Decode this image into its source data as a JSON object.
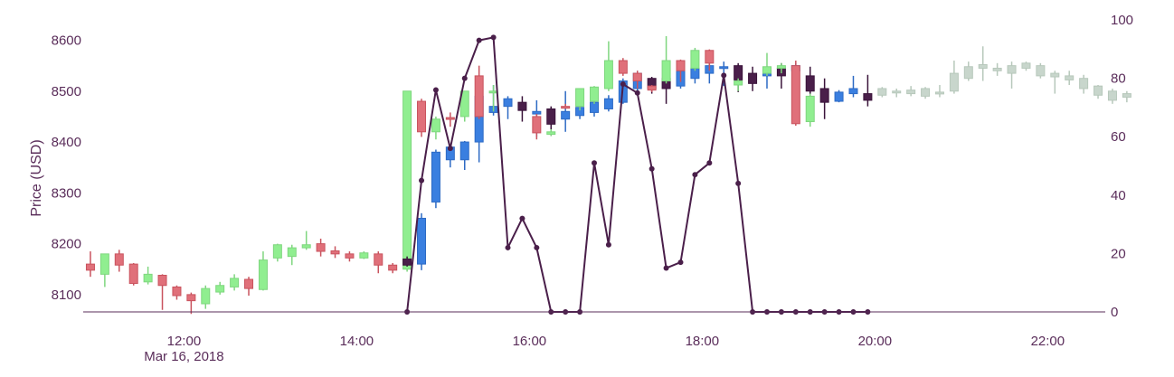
{
  "chart_data": {
    "type": "candlestick",
    "title": "",
    "xlabel": "",
    "ylabel": "Price (USD)",
    "y2label": "",
    "ylim": [
      8066,
      8640
    ],
    "y2lim": [
      0,
      100
    ],
    "xlim": [
      "10:50",
      "22:40"
    ],
    "x_date_label": "Mar 16, 2018",
    "x_ticks": [
      "12:00",
      "14:00",
      "16:00",
      "18:00",
      "20:00",
      "22:00"
    ],
    "y_ticks": [
      "8100",
      "8200",
      "8300",
      "8400",
      "8500",
      "8600"
    ],
    "y2_ticks": [
      "0",
      "20",
      "40",
      "60",
      "80",
      "100"
    ],
    "grid": false,
    "legend": "none",
    "colors": {
      "up": "#90ee90",
      "down": "#e0707a",
      "blue": "#3a7fe0",
      "dark": "#4a1f4a",
      "faded": "#c8d6cc",
      "line": "#4a1f4a",
      "axis_text": "#5a2d5a"
    },
    "candles": [
      {
        "t": "10:55",
        "o": 8160,
        "h": 8185,
        "l": 8135,
        "c": 8148,
        "k": "down"
      },
      {
        "t": "11:05",
        "o": 8140,
        "h": 8180,
        "l": 8115,
        "c": 8180,
        "k": "up"
      },
      {
        "t": "11:15",
        "o": 8180,
        "h": 8188,
        "l": 8145,
        "c": 8158,
        "k": "down"
      },
      {
        "t": "11:25",
        "o": 8160,
        "h": 8162,
        "l": 8118,
        "c": 8122,
        "k": "down"
      },
      {
        "t": "11:35",
        "o": 8125,
        "h": 8155,
        "l": 8120,
        "c": 8140,
        "k": "up"
      },
      {
        "t": "11:45",
        "o": 8138,
        "h": 8140,
        "l": 8070,
        "c": 8118,
        "k": "down"
      },
      {
        "t": "11:55",
        "o": 8115,
        "h": 8118,
        "l": 8090,
        "c": 8098,
        "k": "down"
      },
      {
        "t": "12:05",
        "o": 8100,
        "h": 8104,
        "l": 8062,
        "c": 8088,
        "k": "down"
      },
      {
        "t": "12:15",
        "o": 8082,
        "h": 8118,
        "l": 8072,
        "c": 8112,
        "k": "up"
      },
      {
        "t": "12:25",
        "o": 8105,
        "h": 8125,
        "l": 8100,
        "c": 8118,
        "k": "up"
      },
      {
        "t": "12:35",
        "o": 8115,
        "h": 8140,
        "l": 8108,
        "c": 8132,
        "k": "up"
      },
      {
        "t": "12:45",
        "o": 8130,
        "h": 8135,
        "l": 8098,
        "c": 8112,
        "k": "down"
      },
      {
        "t": "12:55",
        "o": 8110,
        "h": 8185,
        "l": 8108,
        "c": 8168,
        "k": "up"
      },
      {
        "t": "13:05",
        "o": 8172,
        "h": 8200,
        "l": 8165,
        "c": 8198,
        "k": "up"
      },
      {
        "t": "13:15",
        "o": 8175,
        "h": 8198,
        "l": 8158,
        "c": 8192,
        "k": "up"
      },
      {
        "t": "13:25",
        "o": 8192,
        "h": 8225,
        "l": 8188,
        "c": 8198,
        "k": "up"
      },
      {
        "t": "13:35",
        "o": 8200,
        "h": 8210,
        "l": 8175,
        "c": 8185,
        "k": "down"
      },
      {
        "t": "13:45",
        "o": 8186,
        "h": 8195,
        "l": 8172,
        "c": 8180,
        "k": "down"
      },
      {
        "t": "13:55",
        "o": 8180,
        "h": 8185,
        "l": 8165,
        "c": 8172,
        "k": "down"
      },
      {
        "t": "14:05",
        "o": 8172,
        "h": 8185,
        "l": 8170,
        "c": 8182,
        "k": "up"
      },
      {
        "t": "14:15",
        "o": 8180,
        "h": 8185,
        "l": 8142,
        "c": 8158,
        "k": "down"
      },
      {
        "t": "14:25",
        "o": 8158,
        "h": 8162,
        "l": 8142,
        "c": 8148,
        "k": "down"
      },
      {
        "t": "14:35",
        "o": 8150,
        "h": 8500,
        "l": 8145,
        "c": 8500,
        "k": "up"
      },
      {
        "t": "14:35",
        "o": 8170,
        "h": 8175,
        "l": 8155,
        "c": 8158,
        "k": "dark"
      },
      {
        "t": "14:45",
        "o": 8250,
        "h": 8260,
        "l": 8148,
        "c": 8160,
        "k": "blue"
      },
      {
        "t": "14:45",
        "o": 8480,
        "h": 8485,
        "l": 8410,
        "c": 8420,
        "k": "down"
      },
      {
        "t": "14:55",
        "o": 8282,
        "h": 8385,
        "l": 8270,
        "c": 8380,
        "k": "blue"
      },
      {
        "t": "14:55",
        "o": 8420,
        "h": 8450,
        "l": 8405,
        "c": 8445,
        "k": "up"
      },
      {
        "t": "15:05",
        "o": 8365,
        "h": 8395,
        "l": 8350,
        "c": 8390,
        "k": "blue"
      },
      {
        "t": "15:05",
        "o": 8445,
        "h": 8458,
        "l": 8430,
        "c": 8448,
        "k": "down"
      },
      {
        "t": "15:15",
        "o": 8365,
        "h": 8402,
        "l": 8345,
        "c": 8400,
        "k": "blue"
      },
      {
        "t": "15:15",
        "o": 8450,
        "h": 8500,
        "l": 8440,
        "c": 8500,
        "k": "up"
      },
      {
        "t": "15:25",
        "o": 8400,
        "h": 8500,
        "l": 8360,
        "c": 8490,
        "k": "blue"
      },
      {
        "t": "15:25",
        "o": 8530,
        "h": 8550,
        "l": 8445,
        "c": 8450,
        "k": "down"
      },
      {
        "t": "15:35",
        "o": 8458,
        "h": 8512,
        "l": 8452,
        "c": 8470,
        "k": "blue"
      },
      {
        "t": "15:35",
        "o": 8500,
        "h": 8512,
        "l": 8460,
        "c": 8500,
        "k": "up"
      },
      {
        "t": "15:45",
        "o": 8470,
        "h": 8490,
        "l": 8445,
        "c": 8485,
        "k": "blue"
      },
      {
        "t": "15:55",
        "o": 8462,
        "h": 8490,
        "l": 8440,
        "c": 8478,
        "k": "dark"
      },
      {
        "t": "16:05",
        "o": 8455,
        "h": 8482,
        "l": 8410,
        "c": 8460,
        "k": "blue"
      },
      {
        "t": "16:05",
        "o": 8450,
        "h": 8455,
        "l": 8405,
        "c": 8418,
        "k": "down"
      },
      {
        "t": "16:15",
        "o": 8435,
        "h": 8470,
        "l": 8412,
        "c": 8465,
        "k": "dark"
      },
      {
        "t": "16:15",
        "o": 8420,
        "h": 8425,
        "l": 8412,
        "c": 8415,
        "k": "up"
      },
      {
        "t": "16:25",
        "o": 8445,
        "h": 8500,
        "l": 8420,
        "c": 8460,
        "k": "blue"
      },
      {
        "t": "16:25",
        "o": 8470,
        "h": 8475,
        "l": 8465,
        "c": 8470,
        "k": "down"
      },
      {
        "t": "16:35",
        "o": 8452,
        "h": 8505,
        "l": 8445,
        "c": 8468,
        "k": "blue"
      },
      {
        "t": "16:35",
        "o": 8470,
        "h": 8505,
        "l": 8462,
        "c": 8505,
        "k": "up"
      },
      {
        "t": "16:45",
        "o": 8458,
        "h": 8480,
        "l": 8450,
        "c": 8478,
        "k": "blue"
      },
      {
        "t": "16:45",
        "o": 8480,
        "h": 8510,
        "l": 8475,
        "c": 8508,
        "k": "up"
      },
      {
        "t": "16:55",
        "o": 8465,
        "h": 8492,
        "l": 8460,
        "c": 8485,
        "k": "blue"
      },
      {
        "t": "16:55",
        "o": 8505,
        "h": 8598,
        "l": 8500,
        "c": 8560,
        "k": "up"
      },
      {
        "t": "17:05",
        "o": 8478,
        "h": 8525,
        "l": 8475,
        "c": 8520,
        "k": "blue"
      },
      {
        "t": "17:05",
        "o": 8560,
        "h": 8565,
        "l": 8530,
        "c": 8535,
        "k": "down"
      },
      {
        "t": "17:15",
        "o": 8505,
        "h": 8540,
        "l": 8495,
        "c": 8535,
        "k": "blue"
      },
      {
        "t": "17:15",
        "o": 8535,
        "h": 8540,
        "l": 8505,
        "c": 8520,
        "k": "down"
      },
      {
        "t": "17:25",
        "o": 8525,
        "h": 8528,
        "l": 8495,
        "c": 8505,
        "k": "dark"
      },
      {
        "t": "17:25",
        "o": 8510,
        "h": 8512,
        "l": 8498,
        "c": 8502,
        "k": "down"
      },
      {
        "t": "17:35",
        "o": 8525,
        "h": 8528,
        "l": 8475,
        "c": 8505,
        "k": "dark"
      },
      {
        "t": "17:35",
        "o": 8520,
        "h": 8608,
        "l": 8515,
        "c": 8560,
        "k": "up"
      },
      {
        "t": "17:45",
        "o": 8510,
        "h": 8555,
        "l": 8505,
        "c": 8540,
        "k": "blue"
      },
      {
        "t": "17:45",
        "o": 8560,
        "h": 8562,
        "l": 8518,
        "c": 8540,
        "k": "down"
      },
      {
        "t": "17:55",
        "o": 8525,
        "h": 8582,
        "l": 8515,
        "c": 8545,
        "k": "blue"
      },
      {
        "t": "17:55",
        "o": 8545,
        "h": 8585,
        "l": 8540,
        "c": 8580,
        "k": "up"
      },
      {
        "t": "18:05",
        "o": 8535,
        "h": 8555,
        "l": 8515,
        "c": 8550,
        "k": "blue"
      },
      {
        "t": "18:05",
        "o": 8580,
        "h": 8582,
        "l": 8540,
        "c": 8555,
        "k": "down"
      },
      {
        "t": "18:15",
        "o": 8545,
        "h": 8558,
        "l": 8510,
        "c": 8548,
        "k": "blue"
      },
      {
        "t": "18:25",
        "o": 8550,
        "h": 8555,
        "l": 8498,
        "c": 8522,
        "k": "dark"
      },
      {
        "t": "18:25",
        "o": 8520,
        "h": 8525,
        "l": 8500,
        "c": 8512,
        "k": "up"
      },
      {
        "t": "18:35",
        "o": 8535,
        "h": 8548,
        "l": 8500,
        "c": 8515,
        "k": "dark"
      },
      {
        "t": "18:45",
        "o": 8530,
        "h": 8548,
        "l": 8505,
        "c": 8542,
        "k": "blue"
      },
      {
        "t": "18:45",
        "o": 8535,
        "h": 8575,
        "l": 8530,
        "c": 8548,
        "k": "up"
      },
      {
        "t": "18:55",
        "o": 8545,
        "h": 8555,
        "l": 8505,
        "c": 8530,
        "k": "dark"
      },
      {
        "t": "18:55",
        "o": 8550,
        "h": 8555,
        "l": 8535,
        "c": 8545,
        "k": "up"
      },
      {
        "t": "19:05",
        "o": 8540,
        "h": 8555,
        "l": 8525,
        "c": 8550,
        "k": "blue"
      },
      {
        "t": "19:05",
        "o": 8550,
        "h": 8560,
        "l": 8432,
        "c": 8436,
        "k": "down"
      },
      {
        "t": "19:15",
        "o": 8530,
        "h": 8548,
        "l": 8490,
        "c": 8500,
        "k": "dark"
      },
      {
        "t": "19:15",
        "o": 8490,
        "h": 8495,
        "l": 8430,
        "c": 8440,
        "k": "up"
      },
      {
        "t": "19:25",
        "o": 8505,
        "h": 8525,
        "l": 8445,
        "c": 8478,
        "k": "dark"
      },
      {
        "t": "19:35",
        "o": 8480,
        "h": 8502,
        "l": 8478,
        "c": 8498,
        "k": "blue"
      },
      {
        "t": "19:45",
        "o": 8495,
        "h": 8530,
        "l": 8488,
        "c": 8505,
        "k": "blue"
      },
      {
        "t": "19:55",
        "o": 8495,
        "h": 8532,
        "l": 8470,
        "c": 8482,
        "k": "dark"
      },
      {
        "t": "20:05",
        "o": 8492,
        "h": 8508,
        "l": 8488,
        "c": 8505,
        "k": "faded"
      },
      {
        "t": "20:15",
        "o": 8500,
        "h": 8505,
        "l": 8488,
        "c": 8498,
        "k": "faded"
      },
      {
        "t": "20:25",
        "o": 8495,
        "h": 8510,
        "l": 8490,
        "c": 8502,
        "k": "faded"
      },
      {
        "t": "20:35",
        "o": 8490,
        "h": 8508,
        "l": 8485,
        "c": 8505,
        "k": "faded"
      },
      {
        "t": "20:45",
        "o": 8495,
        "h": 8512,
        "l": 8488,
        "c": 8498,
        "k": "faded"
      },
      {
        "t": "20:55",
        "o": 8500,
        "h": 8560,
        "l": 8495,
        "c": 8535,
        "k": "faded"
      },
      {
        "t": "21:05",
        "o": 8525,
        "h": 8558,
        "l": 8520,
        "c": 8548,
        "k": "faded"
      },
      {
        "t": "21:15",
        "o": 8545,
        "h": 8588,
        "l": 8520,
        "c": 8552,
        "k": "faded"
      },
      {
        "t": "21:25",
        "o": 8545,
        "h": 8555,
        "l": 8530,
        "c": 8540,
        "k": "faded"
      },
      {
        "t": "21:35",
        "o": 8535,
        "h": 8558,
        "l": 8505,
        "c": 8550,
        "k": "faded"
      },
      {
        "t": "21:45",
        "o": 8545,
        "h": 8558,
        "l": 8540,
        "c": 8555,
        "k": "faded"
      },
      {
        "t": "21:55",
        "o": 8550,
        "h": 8555,
        "l": 8525,
        "c": 8530,
        "k": "faded"
      },
      {
        "t": "22:05",
        "o": 8535,
        "h": 8540,
        "l": 8495,
        "c": 8528,
        "k": "faded"
      },
      {
        "t": "22:15",
        "o": 8530,
        "h": 8540,
        "l": 8512,
        "c": 8522,
        "k": "faded"
      },
      {
        "t": "22:25",
        "o": 8525,
        "h": 8532,
        "l": 8495,
        "c": 8505,
        "k": "faded"
      },
      {
        "t": "22:35",
        "o": 8510,
        "h": 8512,
        "l": 8485,
        "c": 8492,
        "k": "faded"
      },
      {
        "t": "22:45",
        "o": 8500,
        "h": 8505,
        "l": 8475,
        "c": 8482,
        "k": "faded"
      },
      {
        "t": "22:55",
        "o": 8495,
        "h": 8500,
        "l": 8478,
        "c": 8488,
        "k": "faded"
      }
    ],
    "line": {
      "x": [
        "14:35",
        "14:45",
        "14:55",
        "15:05",
        "15:15",
        "15:25",
        "15:35",
        "15:45",
        "15:55",
        "16:05",
        "16:15",
        "16:25",
        "16:35",
        "16:45",
        "16:55",
        "17:05",
        "17:15",
        "17:25",
        "17:35",
        "17:45",
        "17:55",
        "18:05",
        "18:15",
        "18:25",
        "18:35",
        "18:45",
        "18:55",
        "19:05",
        "19:15",
        "19:25",
        "19:35",
        "19:45",
        "19:55"
      ],
      "y": [
        0,
        45,
        76,
        56,
        80,
        93,
        94,
        22,
        32,
        22,
        0,
        0,
        0,
        51,
        23,
        78,
        75,
        49,
        15,
        17,
        47,
        51,
        81,
        44,
        0,
        0,
        0,
        0,
        0,
        0,
        0,
        0,
        0
      ]
    }
  }
}
